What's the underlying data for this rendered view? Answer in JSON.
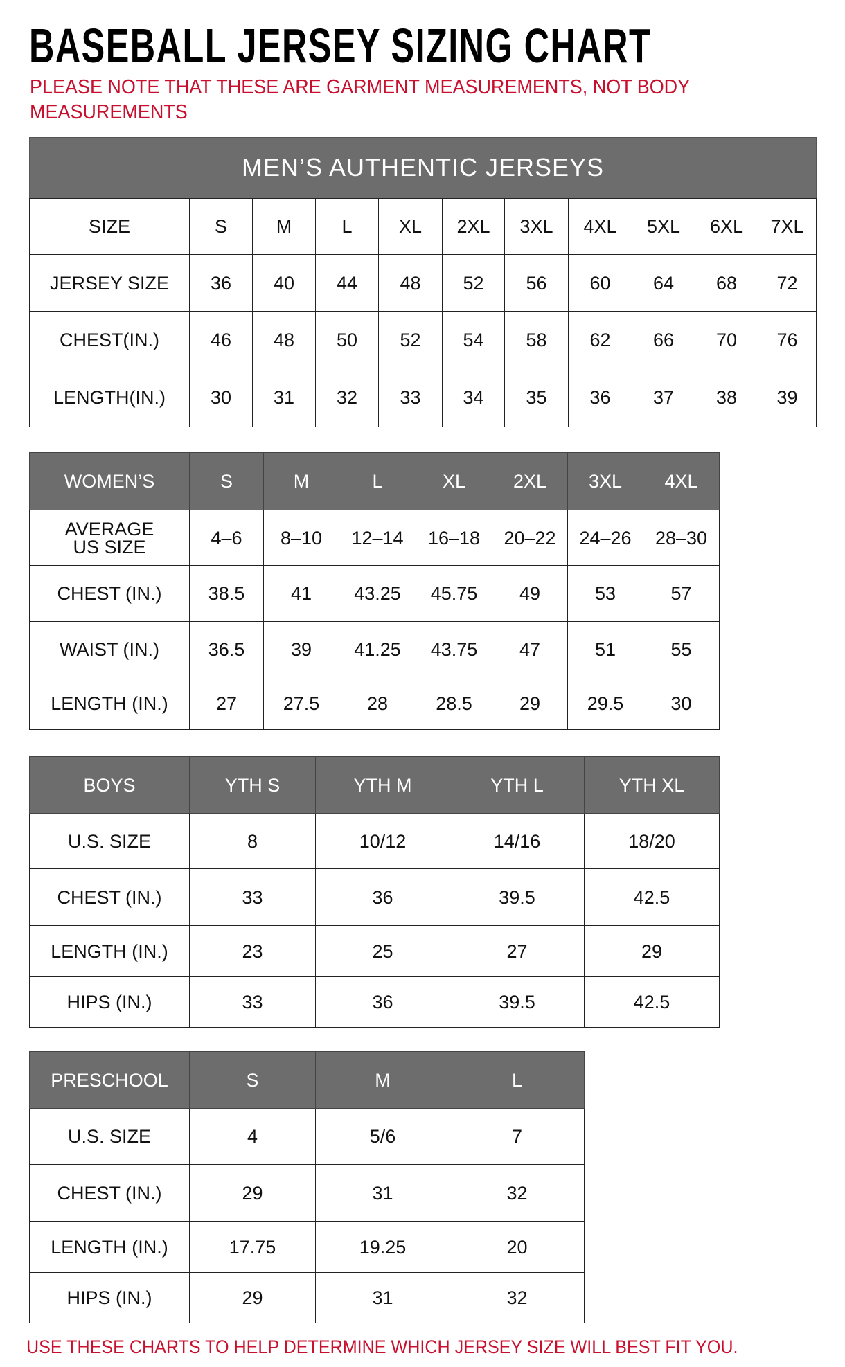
{
  "title": "BASEBALL JERSEY SIZING CHART",
  "note": "PLEASE NOTE THAT THESE ARE GARMENT MEASUREMENTS, NOT BODY MEASUREMENTS",
  "footer": "USE THESE CHARTS TO HELP DETERMINE WHICH JERSEY SIZE WILL BEST FIT YOU.",
  "colors": {
    "header_gray": "#6d6d6d",
    "note_red": "#c8102e"
  },
  "tables": [
    {
      "banner": "MEN’S AUTHENTIC JERSEYS",
      "header": [
        "SIZE",
        "S",
        "M",
        "L",
        "XL",
        "2XL",
        "3XL",
        "4XL",
        "5XL",
        "6XL",
        "7XL"
      ],
      "header_style": "plain",
      "rows": [
        [
          "JERSEY SIZE",
          "36",
          "40",
          "44",
          "48",
          "52",
          "56",
          "60",
          "64",
          "68",
          "72"
        ],
        [
          "CHEST(IN.)",
          "46",
          "48",
          "50",
          "52",
          "54",
          "58",
          "62",
          "66",
          "70",
          "76"
        ],
        [
          "LENGTH(IN.)",
          "30",
          "31",
          "32",
          "33",
          "34",
          "35",
          "36",
          "37",
          "38",
          "39"
        ]
      ]
    },
    {
      "header": [
        "WOMEN’S",
        "S",
        "M",
        "L",
        "XL",
        "2XL",
        "3XL",
        "4XL"
      ],
      "header_style": "gray",
      "rows": [
        [
          "AVERAGE US SIZE",
          "4–6",
          "8–10",
          "12–14",
          "16–18",
          "20–22",
          "24–26",
          "28–30"
        ],
        [
          "CHEST (IN.)",
          "38.5",
          "41",
          "43.25",
          "45.75",
          "49",
          "53",
          "57"
        ],
        [
          "WAIST (IN.)",
          "36.5",
          "39",
          "41.25",
          "43.75",
          "47",
          "51",
          "55"
        ],
        [
          "LENGTH (IN.)",
          "27",
          "27.5",
          "28",
          "28.5",
          "29",
          "29.5",
          "30"
        ]
      ]
    },
    {
      "header": [
        "BOYS",
        "YTH S",
        "YTH M",
        "YTH L",
        "YTH XL"
      ],
      "header_style": "gray",
      "rows": [
        [
          "U.S. SIZE",
          "8",
          "10/12",
          "14/16",
          "18/20"
        ],
        [
          "CHEST (IN.)",
          "33",
          "36",
          "39.5",
          "42.5"
        ],
        [
          "LENGTH (IN.)",
          "23",
          "25",
          "27",
          "29"
        ],
        [
          "HIPS (IN.)",
          "33",
          "36",
          "39.5",
          "42.5"
        ]
      ]
    },
    {
      "header": [
        "PRESCHOOL",
        "S",
        "M",
        "L"
      ],
      "header_style": "gray",
      "rows": [
        [
          "U.S. SIZE",
          "4",
          "5/6",
          "7"
        ],
        [
          "CHEST (IN.)",
          "29",
          "31",
          "32"
        ],
        [
          "LENGTH (IN.)",
          "17.75",
          "19.25",
          "20"
        ],
        [
          "HIPS (IN.)",
          "29",
          "31",
          "32"
        ]
      ]
    }
  ]
}
